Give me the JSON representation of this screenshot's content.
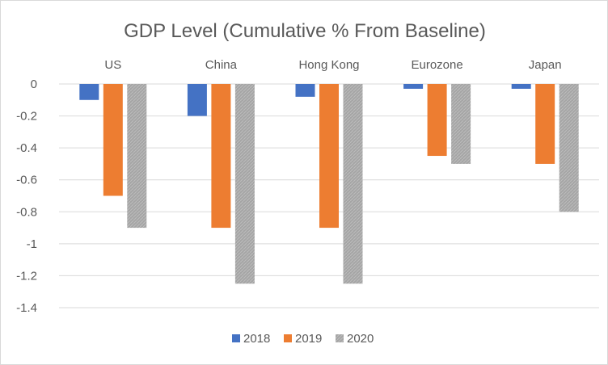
{
  "chart_data": {
    "type": "bar",
    "title": "GDP Level (Cumulative % From Baseline)",
    "xlabel": "",
    "ylabel": "",
    "categories": [
      "US",
      "China",
      "Hong Kong",
      "Eurozone",
      "Japan"
    ],
    "series": [
      {
        "name": "2018",
        "values": [
          -0.1,
          -0.2,
          -0.08,
          -0.03,
          -0.03
        ]
      },
      {
        "name": "2019",
        "values": [
          -0.7,
          -0.9,
          -0.9,
          -0.45,
          -0.5
        ]
      },
      {
        "name": "2020",
        "values": [
          -0.9,
          -1.25,
          -1.25,
          -0.5,
          -0.8
        ]
      }
    ],
    "ylim": [
      -1.4,
      0
    ],
    "yticks": [
      0,
      -0.2,
      -0.4,
      -0.6,
      -0.8,
      -1,
      -1.2,
      -1.4
    ],
    "ytick_labels": [
      "0",
      "-0.2",
      "-0.4",
      "-0.6",
      "-0.8",
      "-1",
      "-1.2",
      "-1.4"
    ],
    "grid": true,
    "category_label_position": "top",
    "legend_position": "bottom-center",
    "colors": {
      "2018": "#4472c4",
      "2019": "#ed7d31",
      "2020": "#a5a5a5"
    }
  }
}
